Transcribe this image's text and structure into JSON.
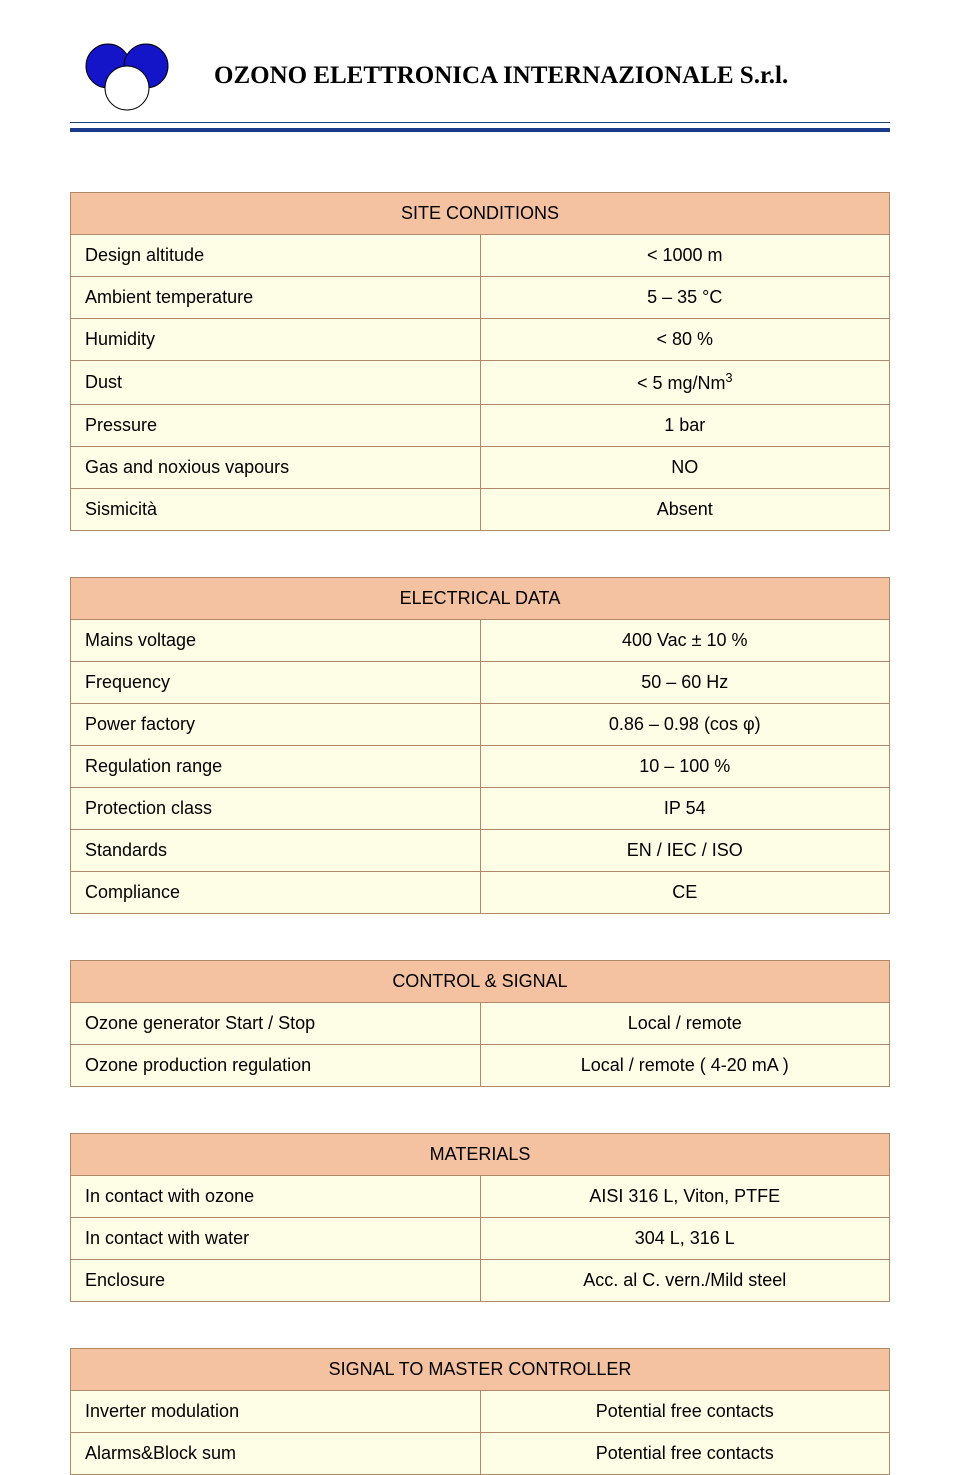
{
  "header": {
    "company_title": "OZONO ELETTRONICA INTERNAZIONALE S.r.l.",
    "logo_colors": {
      "circle": "#1414c8",
      "stroke": "#000000"
    },
    "rule_color": "#1a3a8a"
  },
  "tables": {
    "table_style": {
      "header_bg": "#f4c2a0",
      "cell_bg": "#fefde6",
      "border_color": "#b08a68",
      "font_size_pt": 14,
      "text_color": "#000000"
    },
    "site_conditions": {
      "title": "SITE CONDITIONS",
      "rows": [
        {
          "label": "Design altitude",
          "value": "< 1000 m"
        },
        {
          "label": "Ambient temperature",
          "value": "5 – 35 °C"
        },
        {
          "label": "Humidity",
          "value": "< 80 %"
        },
        {
          "label": "Dust",
          "value_html": "< 5 mg/Nm<sup>3</sup>",
          "value": "< 5 mg/Nm3"
        },
        {
          "label": "Pressure",
          "value": "1 bar"
        },
        {
          "label": "Gas and noxious vapours",
          "value": "NO"
        },
        {
          "label": "Sismicità",
          "value": "Absent"
        }
      ]
    },
    "electrical_data": {
      "title": "ELECTRICAL DATA",
      "rows": [
        {
          "label": "Mains voltage",
          "value": "400 Vac ± 10 %"
        },
        {
          "label": "Frequency",
          "value": "50 – 60 Hz"
        },
        {
          "label": "Power factory",
          "value": "0.86 – 0.98 (cos φ)"
        },
        {
          "label": "Regulation range",
          "value": "10 – 100 %"
        },
        {
          "label": "Protection class",
          "value": "IP 54"
        },
        {
          "label": "Standards",
          "value": "EN / IEC / ISO"
        },
        {
          "label": "Compliance",
          "value": "CE"
        }
      ]
    },
    "control_signal": {
      "title": "CONTROL & SIGNAL",
      "rows": [
        {
          "label": "Ozone generator Start / Stop",
          "value": "Local / remote"
        },
        {
          "label": "Ozone production regulation",
          "value": "Local / remote ( 4-20 mA )"
        }
      ]
    },
    "materials": {
      "title": "MATERIALS",
      "rows": [
        {
          "label": "In contact with ozone",
          "value": "AISI 316 L, Viton, PTFE"
        },
        {
          "label": "In contact with water",
          "value": "304 L, 316 L"
        },
        {
          "label": "Enclosure",
          "value": "Acc. al C. vern./Mild steel"
        }
      ]
    },
    "signal_master": {
      "title": "SIGNAL  TO MASTER CONTROLLER",
      "rows": [
        {
          "label": "Inverter modulation",
          "value": "Potential free contacts"
        },
        {
          "label": "Alarms&Block sum",
          "value": "Potential free contacts"
        }
      ]
    }
  }
}
